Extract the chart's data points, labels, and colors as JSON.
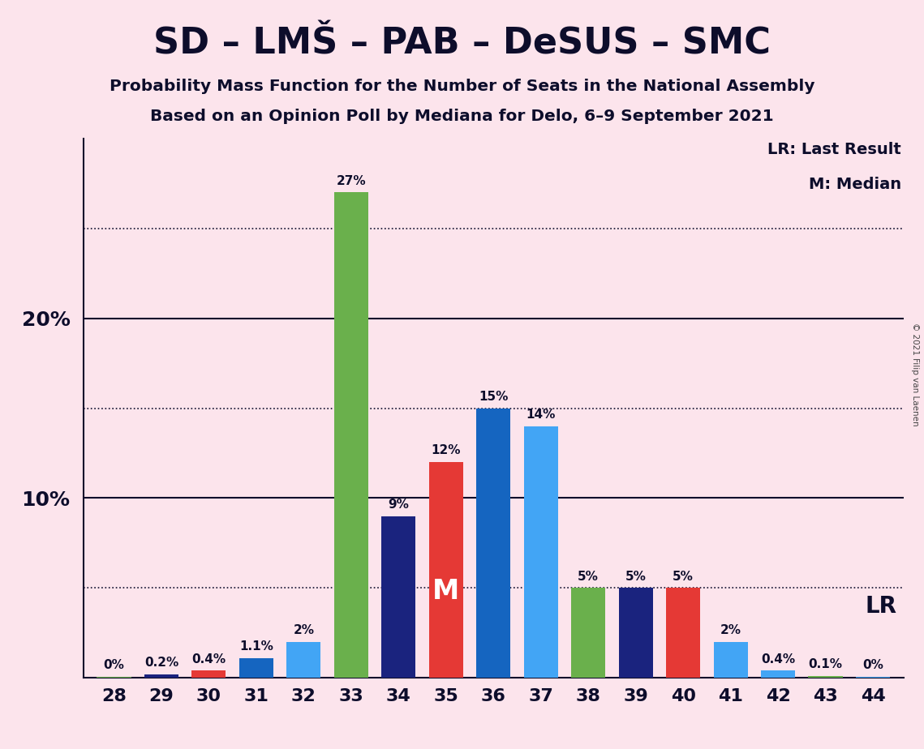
{
  "title": "SD – LMŠ – PAB – DeSUS – SMC",
  "subtitle1": "Probability Mass Function for the Number of Seats in the National Assembly",
  "subtitle2": "Based on an Opinion Poll by Mediana for Delo, 6–9 September 2021",
  "copyright": "© 2021 Filip van Laenen",
  "seats": [
    28,
    29,
    30,
    31,
    32,
    33,
    34,
    35,
    36,
    37,
    38,
    39,
    40,
    41,
    42,
    43,
    44
  ],
  "values": [
    0.05,
    0.2,
    0.4,
    1.1,
    2.0,
    27.0,
    9.0,
    12.0,
    15.0,
    14.0,
    5.0,
    5.0,
    5.0,
    2.0,
    0.4,
    0.1,
    0.05
  ],
  "labels": [
    "0%",
    "0.2%",
    "0.4%",
    "1.1%",
    "2%",
    "27%",
    "9%",
    "12%",
    "15%",
    "14%",
    "5%",
    "5%",
    "5%",
    "2%",
    "0.4%",
    "0.1%",
    "0%"
  ],
  "colors": [
    "#6ab04c",
    "#1a237e",
    "#e53935",
    "#1565c0",
    "#42a5f5",
    "#6ab04c",
    "#1a237e",
    "#e53935",
    "#1565c0",
    "#42a5f5",
    "#6ab04c",
    "#1a237e",
    "#e53935",
    "#42a5f5",
    "#42a5f5",
    "#6ab04c",
    "#42a5f5"
  ],
  "median_seat": 35,
  "lr_value": 5.0,
  "background_color": "#fce4ec",
  "text_color": "#0d0d2b",
  "legend_lr": "LR: Last Result",
  "legend_m": "M: Median",
  "ylim": [
    0,
    30
  ],
  "solid_lines": [
    10.0,
    20.0
  ],
  "dotted_lines": [
    5.0,
    15.0,
    25.0
  ],
  "ytick_values": [
    10,
    20
  ],
  "ytick_labels": [
    "10%",
    "20%"
  ],
  "bar_width": 0.72
}
